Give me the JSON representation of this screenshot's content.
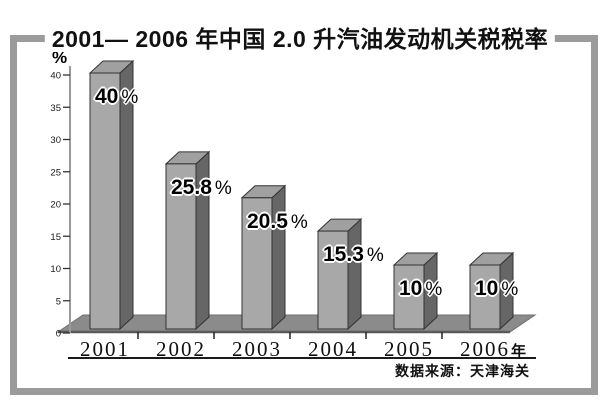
{
  "title": "2001— 2006 年中国 2.0 升汽油发动机关税税率",
  "chart_data": {
    "type": "bar",
    "style": "3d-grayscale-bars",
    "title": "2001— 2006 年中国 2.0 升汽油发动机关税税率",
    "ylabel": "%",
    "xlabel": "",
    "x_axis_suffix": "年",
    "categories": [
      "2001",
      "2002",
      "2003",
      "2004",
      "2005",
      "2006"
    ],
    "values": [
      40,
      25.8,
      20.5,
      15.3,
      10,
      10
    ],
    "value_labels": [
      "40",
      "25.8",
      "20.5",
      "15.3",
      "10",
      "10"
    ],
    "percent_sign": "%",
    "ylim": [
      0,
      40
    ],
    "ytick_step": 5,
    "grid": false,
    "legend": "none",
    "source": "数据来源：天津海关",
    "colors": {
      "bar_front": "#a8a8a8",
      "bar_top": "#a0a0a0",
      "bar_side": "#666666",
      "bar_outline": "#333333",
      "floor": "#8b8b8b",
      "floor_edge": "#5a5a5a",
      "axis": "#999999",
      "frame": "#9b9b9b",
      "text": "#111111"
    }
  }
}
